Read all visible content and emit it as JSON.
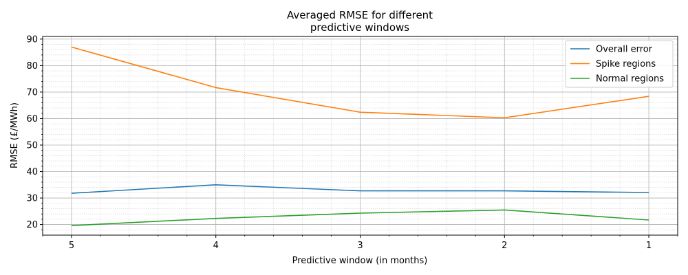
{
  "chart_data": {
    "type": "line",
    "title_lines": [
      "Averaged RMSE for different",
      "predictive windows"
    ],
    "xlabel": "Predictive window (in months)",
    "ylabel": "RMSE (£/MWh)",
    "x": [
      5,
      4,
      3,
      2,
      1
    ],
    "x_ticks": [
      "5",
      "4",
      "3",
      "2",
      "1"
    ],
    "y_ticks": [
      "20",
      "30",
      "40",
      "50",
      "60",
      "70",
      "80",
      "90"
    ],
    "xlim": [
      5.2,
      0.8
    ],
    "ylim": [
      16,
      91
    ],
    "x_reversed": true,
    "grid": true,
    "legend_position": "top-right",
    "series": [
      {
        "name": "Overall error",
        "color": "#1f77b4",
        "values": [
          31.8,
          35.0,
          32.7,
          32.7,
          32.1
        ]
      },
      {
        "name": "Spike regions",
        "color": "#ff7f0e",
        "values": [
          87.0,
          71.7,
          62.4,
          60.3,
          68.4
        ]
      },
      {
        "name": "Normal regions",
        "color": "#2ca02c",
        "values": [
          19.6,
          22.3,
          24.3,
          25.5,
          21.7
        ]
      }
    ]
  }
}
